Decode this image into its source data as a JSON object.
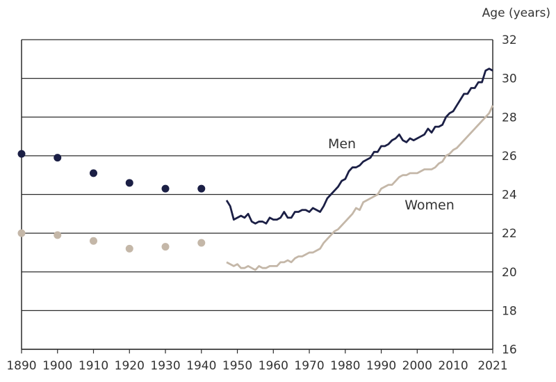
{
  "chart_data": {
    "type": "line",
    "title": "",
    "ylabel": "Age (years)",
    "xlabel": "",
    "xlim": [
      1890,
      2021
    ],
    "ylim": [
      16,
      32
    ],
    "x_ticks": [
      1890,
      1900,
      1910,
      1920,
      1930,
      1940,
      1950,
      1960,
      1970,
      1980,
      1990,
      2000,
      2010,
      2021
    ],
    "y_ticks": [
      16,
      18,
      20,
      22,
      24,
      26,
      28,
      30,
      32
    ],
    "grid": "horizontal",
    "colors": {
      "men": "#1b1f45",
      "women": "#c4b7a8",
      "grid": "#2b2b2b"
    },
    "series": [
      {
        "name": "Men",
        "points": [
          [
            1890,
            26.1
          ],
          [
            1900,
            25.9
          ],
          [
            1910,
            25.1
          ],
          [
            1920,
            24.6
          ],
          [
            1930,
            24.3
          ],
          [
            1940,
            24.3
          ]
        ],
        "x": [
          1947,
          1948,
          1949,
          1950,
          1951,
          1952,
          1953,
          1954,
          1955,
          1956,
          1957,
          1958,
          1959,
          1960,
          1961,
          1962,
          1963,
          1964,
          1965,
          1966,
          1967,
          1968,
          1969,
          1970,
          1971,
          1972,
          1973,
          1974,
          1975,
          1976,
          1977,
          1978,
          1979,
          1980,
          1981,
          1982,
          1983,
          1984,
          1985,
          1986,
          1987,
          1988,
          1989,
          1990,
          1991,
          1992,
          1993,
          1994,
          1995,
          1996,
          1997,
          1998,
          1999,
          2000,
          2001,
          2002,
          2003,
          2004,
          2005,
          2006,
          2007,
          2008,
          2009,
          2010,
          2011,
          2012,
          2013,
          2014,
          2015,
          2016,
          2017,
          2018,
          2019,
          2020,
          2021
        ],
        "y": [
          23.7,
          23.4,
          22.7,
          22.8,
          22.9,
          22.8,
          23.0,
          22.6,
          22.5,
          22.6,
          22.6,
          22.5,
          22.8,
          22.7,
          22.7,
          22.8,
          23.1,
          22.8,
          22.8,
          23.1,
          23.1,
          23.2,
          23.2,
          23.1,
          23.3,
          23.2,
          23.1,
          23.4,
          23.8,
          24.0,
          24.2,
          24.4,
          24.7,
          24.8,
          25.2,
          25.4,
          25.4,
          25.5,
          25.7,
          25.8,
          25.9,
          26.2,
          26.2,
          26.5,
          26.5,
          26.6,
          26.8,
          26.9,
          27.1,
          26.8,
          26.7,
          26.9,
          26.8,
          26.9,
          27.0,
          27.1,
          27.4,
          27.2,
          27.5,
          27.5,
          27.6,
          28.0,
          28.2,
          28.3,
          28.6,
          28.9,
          29.2,
          29.2,
          29.5,
          29.5,
          29.8,
          29.8,
          30.4,
          30.5,
          30.4
        ]
      },
      {
        "name": "Women",
        "points": [
          [
            1890,
            22.0
          ],
          [
            1900,
            21.9
          ],
          [
            1910,
            21.6
          ],
          [
            1920,
            21.2
          ],
          [
            1930,
            21.3
          ],
          [
            1940,
            21.5
          ]
        ],
        "x": [
          1947,
          1948,
          1949,
          1950,
          1951,
          1952,
          1953,
          1954,
          1955,
          1956,
          1957,
          1958,
          1959,
          1960,
          1961,
          1962,
          1963,
          1964,
          1965,
          1966,
          1967,
          1968,
          1969,
          1970,
          1971,
          1972,
          1973,
          1974,
          1975,
          1976,
          1977,
          1978,
          1979,
          1980,
          1981,
          1982,
          1983,
          1984,
          1985,
          1986,
          1987,
          1988,
          1989,
          1990,
          1991,
          1992,
          1993,
          1994,
          1995,
          1996,
          1997,
          1998,
          1999,
          2000,
          2001,
          2002,
          2003,
          2004,
          2005,
          2006,
          2007,
          2008,
          2009,
          2010,
          2011,
          2012,
          2013,
          2014,
          2015,
          2016,
          2017,
          2018,
          2019,
          2020,
          2021
        ],
        "y": [
          20.5,
          20.4,
          20.3,
          20.4,
          20.2,
          20.2,
          20.3,
          20.2,
          20.1,
          20.3,
          20.2,
          20.2,
          20.3,
          20.3,
          20.3,
          20.5,
          20.5,
          20.6,
          20.5,
          20.7,
          20.8,
          20.8,
          20.9,
          21.0,
          21.0,
          21.1,
          21.2,
          21.5,
          21.7,
          21.9,
          22.1,
          22.2,
          22.4,
          22.6,
          22.8,
          23.0,
          23.3,
          23.2,
          23.6,
          23.7,
          23.8,
          23.9,
          24.0,
          24.3,
          24.4,
          24.5,
          24.5,
          24.7,
          24.9,
          25.0,
          25.0,
          25.1,
          25.1,
          25.1,
          25.2,
          25.3,
          25.3,
          25.3,
          25.4,
          25.6,
          25.7,
          26.0,
          26.1,
          26.3,
          26.4,
          26.6,
          26.8,
          27.0,
          27.2,
          27.4,
          27.6,
          27.8,
          28.0,
          28.2,
          28.6
        ]
      }
    ]
  }
}
